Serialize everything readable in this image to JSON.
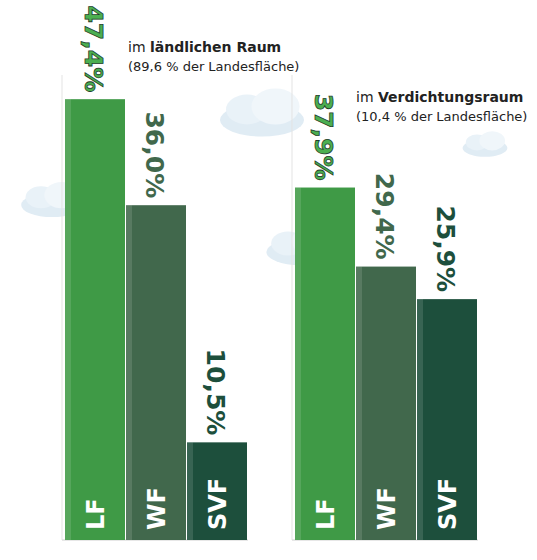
{
  "chart_data": [
    {
      "type": "bar",
      "title": "im ländlichen Raum",
      "subtitle": "(89,6 % der Landesfläche)",
      "categories": [
        "LF",
        "WF",
        "SVF"
      ],
      "values": [
        47.4,
        36.0,
        10.5
      ],
      "value_labels": [
        "47,4%",
        "36,0%",
        "10,5%"
      ],
      "colors": [
        "#3f9a46",
        "#41684c",
        "#1d4f3c"
      ],
      "ylim": [
        0,
        50
      ],
      "data_labels": true,
      "tick_labels": "x"
    },
    {
      "type": "bar",
      "title": "im Verdichtungsraum",
      "subtitle": "(10,4 % der Landesfläche)",
      "categories": [
        "LF",
        "WF",
        "SVF"
      ],
      "values": [
        37.9,
        29.4,
        25.9
      ],
      "value_labels": [
        "37,9%",
        "29,4%",
        "25,9%"
      ],
      "colors": [
        "#3f9a46",
        "#41684c",
        "#1d4f3c"
      ],
      "ylim": [
        0,
        50
      ],
      "data_labels": true,
      "tick_labels": "x"
    }
  ]
}
